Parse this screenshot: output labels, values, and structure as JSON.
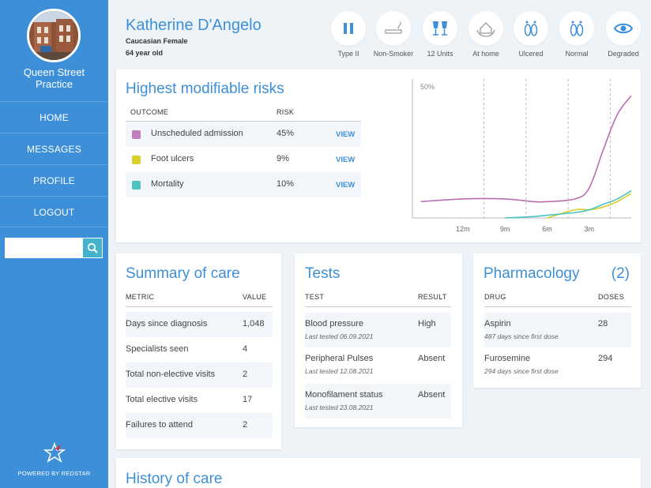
{
  "sidebar": {
    "practice_line1": "Queen Street",
    "practice_line2": "Practice",
    "nav": [
      "HOME",
      "MESSAGES",
      "PROFILE",
      "LOGOUT"
    ],
    "search_placeholder": "",
    "powered_by": "POWERED BY REDSTAR"
  },
  "patient": {
    "name": "Katherine D'Angelo",
    "ethnicity_sex": "Caucasian Female",
    "age": "64 year old"
  },
  "stats": [
    {
      "label": "Type II",
      "icon": "pause-icon"
    },
    {
      "label": "Non-Smoker",
      "icon": "cigarette-icon"
    },
    {
      "label": "12 Units",
      "icon": "wine-glasses-icon"
    },
    {
      "label": "At home",
      "icon": "home-care-icon"
    },
    {
      "label": "Ulcered",
      "icon": "foot-icon"
    },
    {
      "label": "Normal",
      "icon": "feet-icon"
    },
    {
      "label": "Degraded",
      "icon": "eye-icon"
    }
  ],
  "risks": {
    "title": "Highest modifiable risks",
    "col_outcome": "OUTCOME",
    "col_risk": "RISK",
    "view_label": "VIEW",
    "rows": [
      {
        "outcome": "Unscheduled admission",
        "risk": "45%",
        "color": "#c07dc0"
      },
      {
        "outcome": "Foot ulcers",
        "risk": "9%",
        "color": "#d9cf2a"
      },
      {
        "outcome": "Mortality",
        "risk": "10%",
        "color": "#4cc3c3"
      }
    ]
  },
  "chart_data": {
    "type": "line",
    "y_max_label": "50%",
    "ylim": [
      0,
      50
    ],
    "x_ticks": [
      "12m",
      "9m",
      "6m",
      "3m"
    ],
    "x": [
      -15,
      -12,
      -9,
      -7,
      -6,
      -4,
      -3,
      -2,
      -1,
      0
    ],
    "series": [
      {
        "color": "#b86db3",
        "values": [
          6,
          7,
          7,
          6,
          6,
          7,
          11,
          25,
          38,
          45
        ]
      },
      {
        "color": "#d9cf2a",
        "values": [
          null,
          null,
          null,
          null,
          0,
          3,
          3,
          4,
          6,
          9
        ]
      },
      {
        "color": "#4cc3c3",
        "values": [
          null,
          null,
          0,
          0.5,
          1,
          2,
          3,
          5,
          7,
          10
        ]
      }
    ]
  },
  "summary": {
    "title": "Summary of care",
    "col_metric": "METRIC",
    "col_value": "VALUE",
    "rows": [
      {
        "metric": "Days since diagnosis",
        "value": "1,048"
      },
      {
        "metric": "Specialists seen",
        "value": "4"
      },
      {
        "metric": "Total non-elective visits",
        "value": "2"
      },
      {
        "metric": "Total elective visits",
        "value": "17"
      },
      {
        "metric": "Failures to attend",
        "value": "2"
      }
    ]
  },
  "tests": {
    "title": "Tests",
    "col_test": "TEST",
    "col_result": "RESULT",
    "rows": [
      {
        "test": "Blood pressure",
        "date": "Last tested 06.09.2021",
        "result": "High"
      },
      {
        "test": "Peripheral Pulses",
        "date": "Last tested 12.08.2021",
        "result": "Absent"
      },
      {
        "test": "Monofilament status",
        "date": "Last tested 23.08.2021",
        "result": "Absent"
      }
    ]
  },
  "pharmacology": {
    "title": "Pharmacology",
    "count": "(2)",
    "col_drug": "DRUG",
    "col_doses": "DOSES",
    "rows": [
      {
        "drug": "Aspirin",
        "since": "487 days since first dose",
        "doses": "28"
      },
      {
        "drug": "Furosemine",
        "since": "294 days since first dose",
        "doses": "294"
      }
    ]
  },
  "history": {
    "title": "History of care"
  }
}
